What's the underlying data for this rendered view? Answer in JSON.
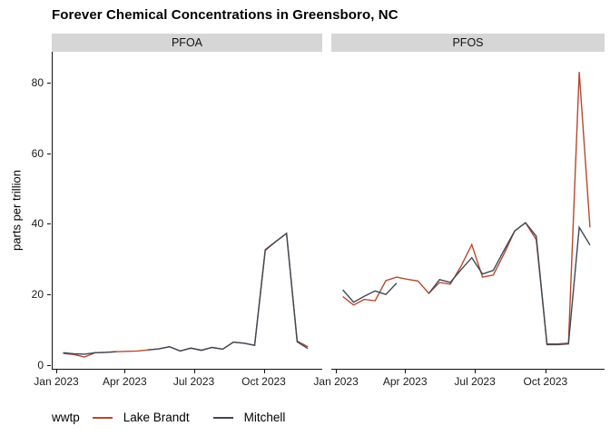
{
  "chart_data": {
    "type": "line",
    "title": "Forever Chemical Concentrations in Greensboro, NC",
    "ylabel": "parts per trillion",
    "legend_title": "wwtp",
    "legend_position": "bottom-left",
    "grid": false,
    "facet_labels": [
      "PFOA",
      "PFOS"
    ],
    "x_tick_labels": [
      "Jan 2023",
      "Apr 2023",
      "Jul 2023",
      "Oct 2023"
    ],
    "x_tick_days": [
      0,
      90,
      181,
      273
    ],
    "y_ticks": [
      0,
      20,
      40,
      60,
      80
    ],
    "ylim": [
      -1.3,
      88.7
    ],
    "xlim_days": [
      -6,
      350
    ],
    "x_dates": [
      "2023-01-10",
      "2023-01-24",
      "2023-02-07",
      "2023-02-21",
      "2023-03-07",
      "2023-03-21",
      "2023-04-04",
      "2023-04-18",
      "2023-05-02",
      "2023-05-16",
      "2023-05-30",
      "2023-06-13",
      "2023-06-27",
      "2023-07-11",
      "2023-07-25",
      "2023-08-08",
      "2023-08-22",
      "2023-09-05",
      "2023-09-19",
      "2023-10-03",
      "2023-10-17",
      "2023-10-31",
      "2023-11-14",
      "2023-11-28"
    ],
    "x_days": [
      9,
      23,
      37,
      51,
      65,
      79,
      93,
      107,
      121,
      135,
      149,
      163,
      177,
      191,
      205,
      219,
      233,
      247,
      261,
      275,
      289,
      303,
      317,
      331
    ],
    "colors": {
      "Lake Brandt": "#b5492f",
      "Mitchell": "#3f4856"
    },
    "facets": [
      {
        "label": "PFOA",
        "series": [
          {
            "name": "Lake Brandt",
            "values": [
              3.3,
              3.0,
              2.3,
              3.5,
              3.6,
              3.8,
              3.9,
              4.0,
              4.3,
              4.6,
              5.2,
              4.0,
              4.8,
              4.2,
              5.0,
              4.5,
              6.5,
              6.2,
              5.6,
              32.7,
              35.0,
              37.3,
              6.8,
              5.2
            ]
          },
          {
            "name": "Mitchell",
            "values": [
              3.5,
              3.2,
              3.1,
              3.5,
              3.6,
              3.8,
              null,
              null,
              4.3,
              4.6,
              5.2,
              4.0,
              4.8,
              4.2,
              5.0,
              4.5,
              6.5,
              6.2,
              5.6,
              32.5,
              35.0,
              37.3,
              6.6,
              4.7
            ]
          }
        ]
      },
      {
        "label": "PFOS",
        "series": [
          {
            "name": "Lake Brandt",
            "values": [
              19.4,
              17.0,
              18.6,
              18.2,
              23.9,
              24.9,
              24.3,
              23.8,
              20.3,
              23.4,
              22.9,
              28.0,
              34.1,
              24.9,
              25.5,
              31.5,
              38.0,
              40.3,
              35.5,
              6.0,
              6.0,
              6.2,
              83.0,
              39.0
            ]
          },
          {
            "name": "Mitchell",
            "values": [
              21.3,
              17.8,
              19.5,
              21.0,
              20.0,
              23.2,
              null,
              null,
              20.3,
              24.2,
              23.4,
              27.0,
              30.4,
              25.8,
              26.8,
              32.5,
              38.0,
              40.3,
              36.5,
              5.8,
              5.8,
              6.0,
              39.0,
              34.0
            ]
          }
        ]
      }
    ]
  },
  "legend": {
    "title": "wwtp",
    "items": [
      {
        "label": "Lake Brandt"
      },
      {
        "label": "Mitchell"
      }
    ]
  }
}
